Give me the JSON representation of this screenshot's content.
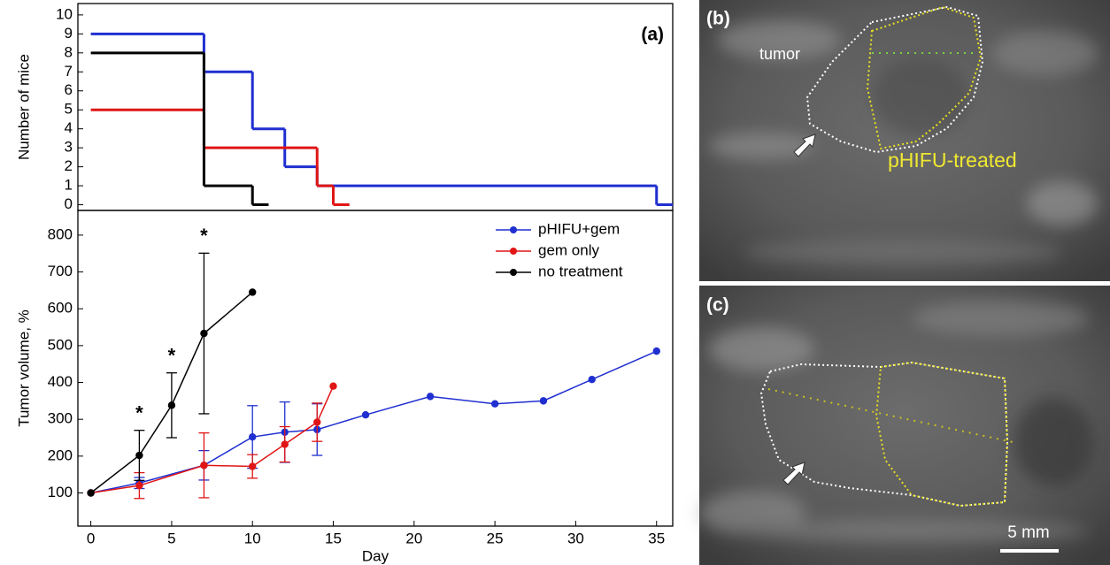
{
  "chart_data": [
    {
      "type": "step",
      "label": "(a)",
      "ylabel": "Number of mice",
      "xlim": [
        -0.8,
        36
      ],
      "ylim": [
        -0.3,
        10.6
      ],
      "yticks": [
        0,
        1,
        2,
        3,
        4,
        5,
        6,
        7,
        8,
        9,
        10
      ],
      "series": [
        {
          "name": "pHIFU+gem",
          "color": "#1f2fd0",
          "x": [
            0,
            7,
            10,
            12,
            14,
            35,
            36
          ],
          "values": [
            9,
            7,
            4,
            2,
            1,
            0,
            0
          ]
        },
        {
          "name": "gem only",
          "color": "#e01515",
          "x": [
            0,
            7,
            14,
            15,
            16
          ],
          "values": [
            5,
            3,
            1,
            0,
            0
          ]
        },
        {
          "name": "no treatment",
          "color": "#000000",
          "x": [
            0,
            7,
            10,
            11
          ],
          "values": [
            8,
            1,
            0,
            0
          ]
        }
      ]
    },
    {
      "type": "line",
      "xlabel": "Day",
      "ylabel": "Tumor volume, %",
      "xlim": [
        -0.8,
        36
      ],
      "ylim": [
        10,
        867
      ],
      "xticks": [
        0,
        5,
        10,
        15,
        20,
        25,
        30,
        35
      ],
      "yticks": [
        100,
        200,
        300,
        400,
        500,
        600,
        700,
        800
      ],
      "legend": "top-right",
      "series": [
        {
          "name": "pHIFU+gem",
          "color": "#1f2fd0",
          "x": [
            0,
            3,
            7,
            10,
            12,
            14,
            17,
            21,
            25,
            28,
            31,
            35
          ],
          "values": [
            100,
            127,
            175,
            252,
            265,
            272,
            312,
            362,
            342,
            350,
            408,
            485
          ],
          "errors": [
            null,
            15,
            40,
            85,
            82,
            70,
            null,
            null,
            null,
            null,
            null,
            null
          ]
        },
        {
          "name": "gem only",
          "color": "#e01515",
          "x": [
            0,
            3,
            7,
            10,
            12,
            14,
            15
          ],
          "values": [
            100,
            120,
            175,
            172,
            232,
            292,
            390
          ],
          "errors": [
            null,
            35,
            88,
            32,
            48,
            52,
            null
          ]
        },
        {
          "name": "no treatment",
          "color": "#000000",
          "x": [
            0,
            3,
            5,
            7,
            10
          ],
          "values": [
            100,
            202,
            338,
            533,
            645
          ],
          "errors": [
            null,
            68,
            88,
            218,
            null
          ]
        }
      ],
      "annotations": [
        {
          "text": "*",
          "x": 3
        },
        {
          "text": "*",
          "x": 5
        },
        {
          "text": "*",
          "x": 7
        }
      ]
    }
  ],
  "panels": [
    {
      "label": "(b)",
      "annotations": [
        "tumor",
        "pHIFU-treated"
      ]
    },
    {
      "label": "(c)",
      "scale_bar": "5 mm"
    }
  ]
}
